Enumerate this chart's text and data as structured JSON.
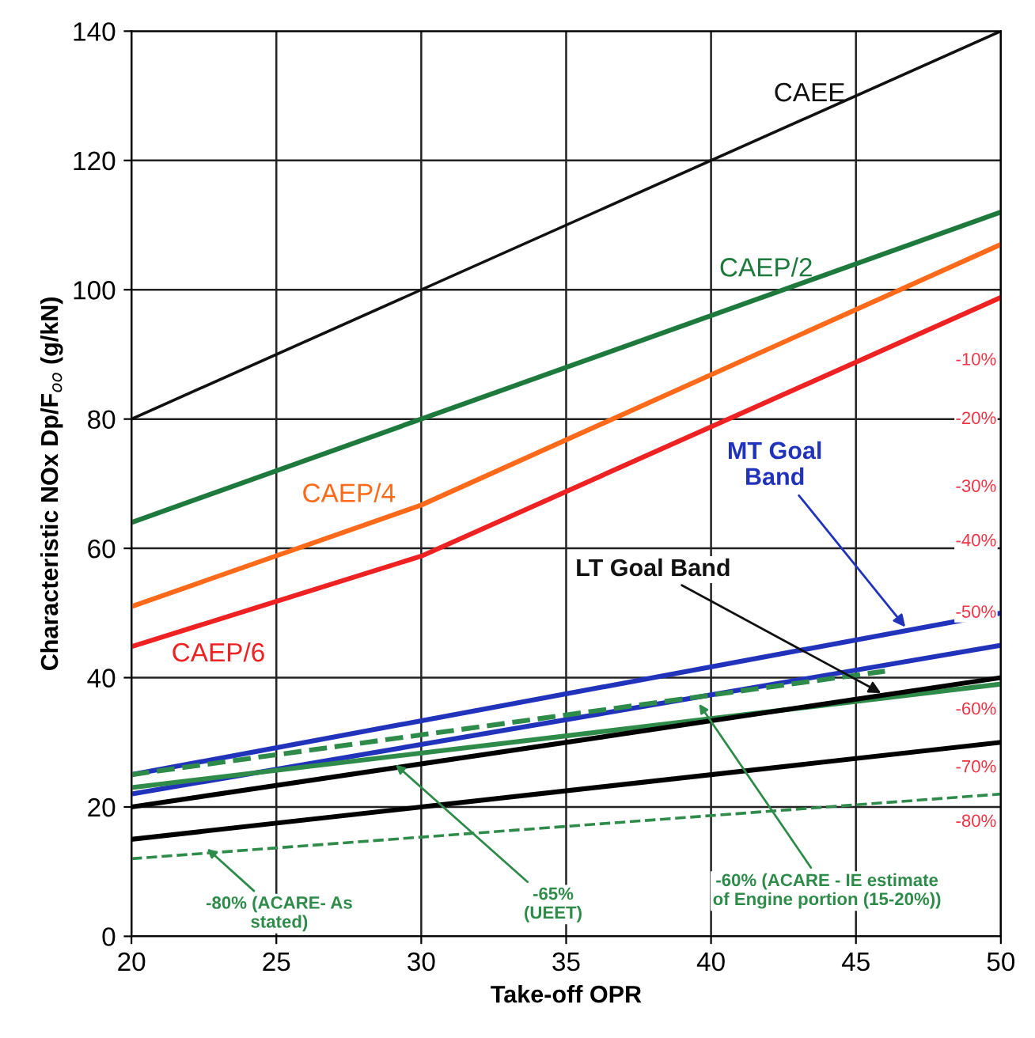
{
  "chart_data": {
    "type": "line",
    "xlabel": "Take-off OPR",
    "ylabel": "Characteristic NOx Dp/F$_{oo}$ (g/kN)",
    "xlim": [
      20,
      50
    ],
    "xticks": [
      20,
      25,
      30,
      35,
      40,
      45,
      50
    ],
    "ylim": [
      0,
      140
    ],
    "yticks": [
      0,
      20,
      40,
      60,
      80,
      100,
      120,
      140
    ],
    "grid": true,
    "legend": false,
    "marker": "none",
    "series": [
      {
        "name": "CAEE",
        "color": "#111111",
        "x": [
          20,
          50
        ],
        "values": [
          80,
          140
        ]
      },
      {
        "name": "CAEP/2",
        "color": "#1e7a3c",
        "x": [
          20,
          30,
          50
        ],
        "values": [
          64,
          80,
          112
        ]
      },
      {
        "name": "CAEP/4",
        "color": "#ff6a1a",
        "x": [
          20,
          30,
          50
        ],
        "values": [
          51,
          66.7,
          107
        ]
      },
      {
        "name": "CAEP/6",
        "color": "#ee2222",
        "x": [
          20,
          30,
          50
        ],
        "values": [
          44.8,
          58.8,
          98.8
        ]
      },
      {
        "color": "#2233bb",
        "x": [
          20,
          50
        ],
        "values": [
          25,
          50
        ]
      },
      {
        "color": "#2233bb",
        "x": [
          20,
          50
        ],
        "values": [
          22,
          45
        ]
      },
      {
        "color": "#2e8b4a",
        "x": [
          20,
          46
        ],
        "values": [
          25,
          41
        ],
        "line_style": "dashed"
      },
      {
        "color": "#2e8b4a",
        "x": [
          20,
          50
        ],
        "values": [
          23,
          39
        ]
      },
      {
        "color": "#000000",
        "x": [
          20,
          50
        ],
        "values": [
          20,
          40
        ]
      },
      {
        "color": "#000000",
        "x": [
          20,
          50
        ],
        "values": [
          15,
          30
        ]
      },
      {
        "color": "#2e8b4a",
        "x": [
          20,
          50
        ],
        "values": [
          12,
          22
        ],
        "line_style": "dashed"
      }
    ],
    "annotations": [
      {
        "text": "MT Goal\nBand",
        "x": 46.8,
        "y": 47.3
      },
      {
        "text": "LT Goal Band",
        "x": 46,
        "y": 37.3
      },
      {
        "text": "-80% (ACARE- As\nstated)",
        "x": 22.5,
        "y": 14
      },
      {
        "text": "-65%\n(UEET)",
        "x": 29,
        "y": 27
      },
      {
        "text": "-60% (ACARE - IE estimate\nof Engine portion (15-20%))",
        "x": 39.5,
        "y": 36.5
      },
      "-10%",
      "-20%",
      "-30%",
      "-40%",
      "-50%",
      "-60%",
      "-70%",
      "-80%"
    ]
  }
}
